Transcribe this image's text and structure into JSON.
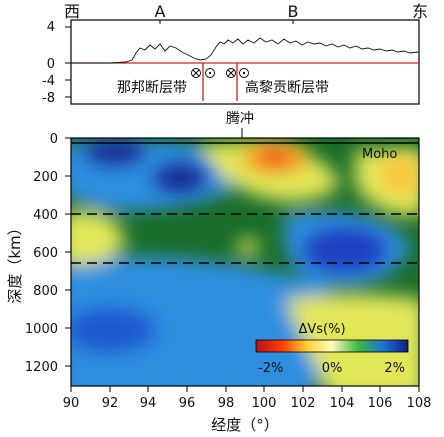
{
  "top_panel": {
    "direction_left": "西",
    "direction_right": "东",
    "point_a": "A",
    "point_b": "B",
    "y_ticks": [
      "4",
      "0",
      "-4",
      "-8"
    ],
    "fault_left": "那邦断层带",
    "fault_right": "高黎贡断层带",
    "location": "腾冲"
  },
  "main_panel": {
    "moho_label": "Moho",
    "y_axis_label": "深度（km）",
    "x_axis_label": "经度（°）",
    "y_ticks": [
      "0",
      "200",
      "400",
      "600",
      "800",
      "1000",
      "1200"
    ],
    "x_ticks": [
      "90",
      "92",
      "94",
      "96",
      "98",
      "100",
      "102",
      "104",
      "106",
      "108"
    ],
    "colorbar_title": "ΔVs(%)",
    "colorbar_ticks": [
      "-2%",
      "0%",
      "2%"
    ]
  },
  "chart_data": [
    {
      "type": "line",
      "title": "",
      "ylim": [
        -8,
        4
      ],
      "xlim": [
        90,
        108
      ],
      "x": [
        90,
        92,
        93.5,
        94.5,
        95.5,
        96,
        96.8,
        97.5,
        98.5,
        99.5,
        100.5,
        102,
        104,
        105.5,
        107,
        108
      ],
      "y": [
        0,
        0,
        0.1,
        1.0,
        1.5,
        1.6,
        0.7,
        0.4,
        2.0,
        2.2,
        2.0,
        1.8,
        1.5,
        1.3,
        1.0,
        1.0
      ]
    },
    {
      "type": "heatmap",
      "xlabel": "经度（°）",
      "ylabel": "深度（km）",
      "xlim": [
        90,
        108
      ],
      "ylim": [
        0,
        1300
      ],
      "colorbar_range": [
        -2,
        2
      ],
      "reference_depths": [
        400,
        660
      ]
    }
  ]
}
